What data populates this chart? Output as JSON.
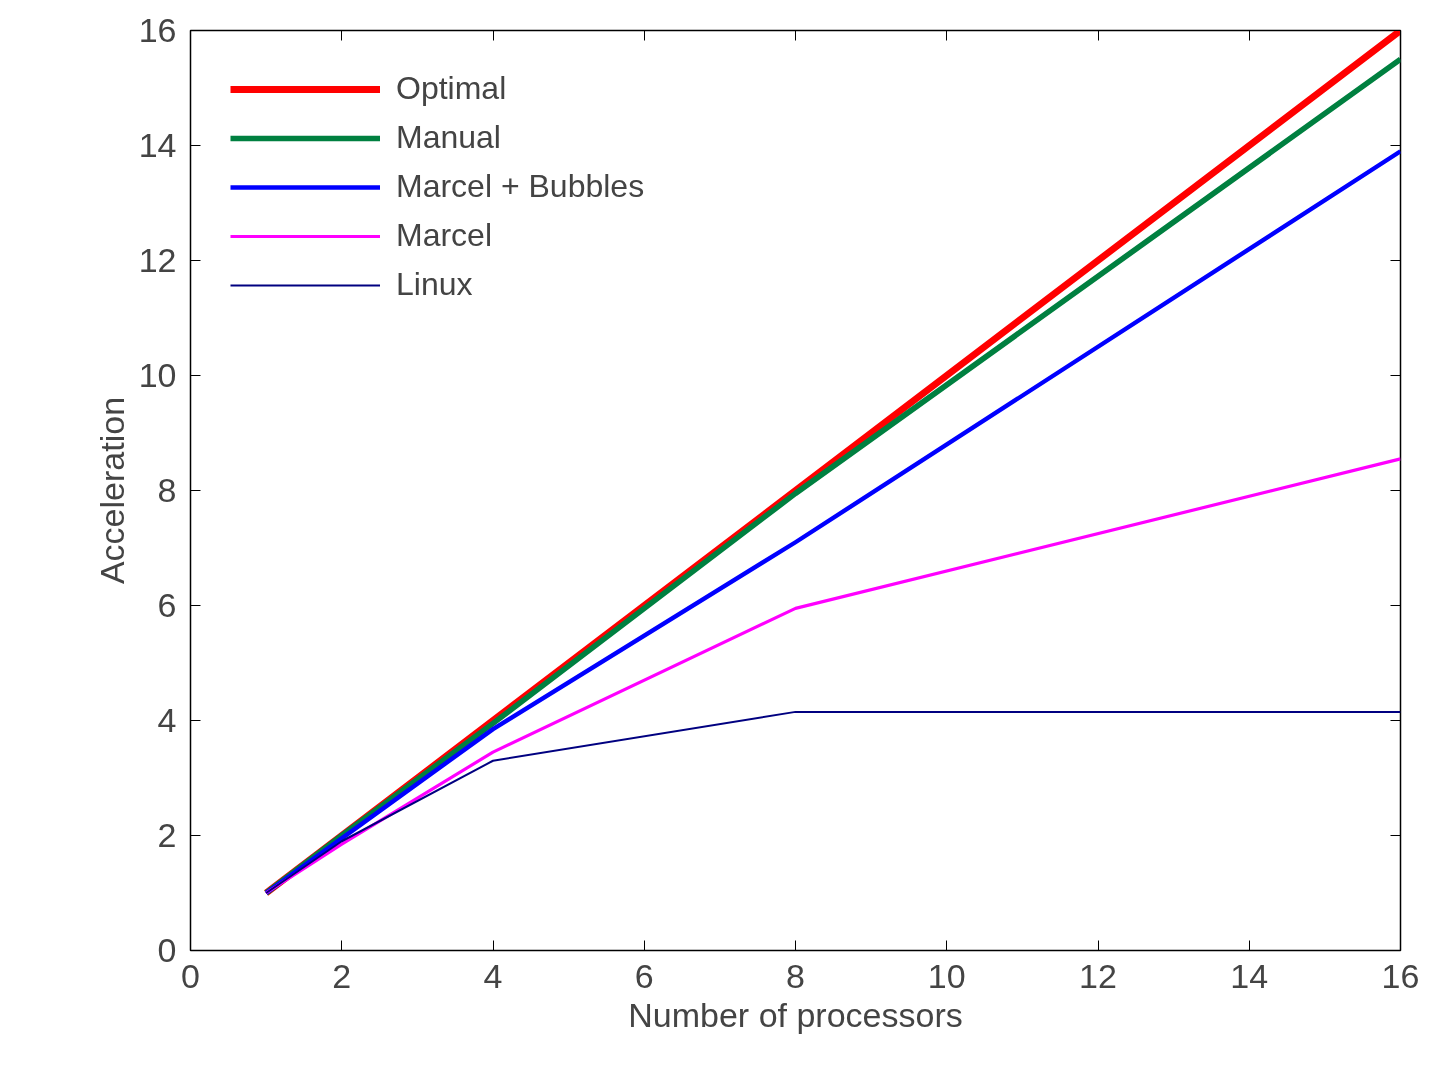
{
  "chart_data": {
    "type": "line",
    "xlabel": "Number of processors",
    "ylabel": "Acceleration",
    "x": [
      1,
      2,
      4,
      8,
      16
    ],
    "series": [
      {
        "name": "Optimal",
        "color": "#ff0000",
        "values": [
          1,
          2,
          4,
          8,
          16
        ]
      },
      {
        "name": "Manual",
        "color": "#008040",
        "values": [
          1,
          2,
          3.95,
          7.95,
          15.5
        ]
      },
      {
        "name": "Marcel + Bubbles",
        "color": "#0000ff",
        "values": [
          1,
          1.95,
          3.85,
          7.1,
          13.9
        ]
      },
      {
        "name": "Marcel",
        "color": "#ff00ff",
        "values": [
          1,
          1.85,
          3.45,
          5.95,
          8.55
        ]
      },
      {
        "name": "Linux",
        "color": "#000080",
        "values": [
          1,
          1.9,
          3.3,
          4.15,
          4.15
        ]
      }
    ],
    "xlim": [
      0,
      16
    ],
    "ylim": [
      0,
      16
    ],
    "xticks": [
      0,
      2,
      4,
      6,
      8,
      10,
      12,
      14,
      16
    ],
    "yticks": [
      0,
      2,
      4,
      6,
      8,
      10,
      12,
      14,
      16
    ],
    "grid": false,
    "legend": "top left",
    "marker": "none",
    "line_style": "solid"
  }
}
